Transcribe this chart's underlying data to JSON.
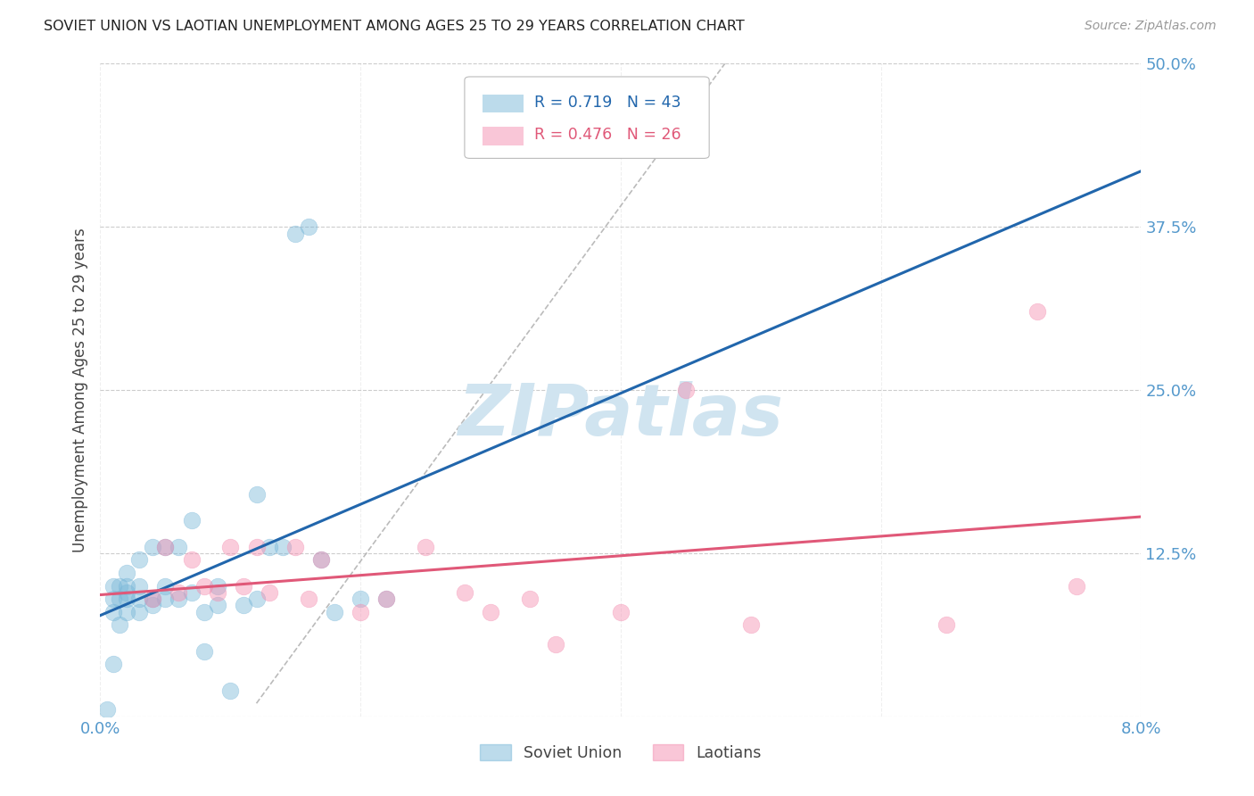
{
  "title": "SOVIET UNION VS LAOTIAN UNEMPLOYMENT AMONG AGES 25 TO 29 YEARS CORRELATION CHART",
  "source": "Source: ZipAtlas.com",
  "ylabel": "Unemployment Among Ages 25 to 29 years",
  "xlim": [
    0.0,
    0.08
  ],
  "ylim": [
    0.0,
    0.5
  ],
  "xticks": [
    0.0,
    0.02,
    0.04,
    0.06,
    0.08
  ],
  "yticks": [
    0.0,
    0.125,
    0.25,
    0.375,
    0.5
  ],
  "soviet_color": "#7ab8d9",
  "laotian_color": "#f48fb1",
  "trendline1_color": "#2166ac",
  "trendline2_color": "#e05878",
  "trendline_dashed_color": "#aaaaaa",
  "background_color": "#ffffff",
  "grid_color": "#cccccc",
  "title_color": "#222222",
  "axis_label_color": "#444444",
  "tick_label_color": "#5599cc",
  "watermark_text": "ZIPatlas",
  "watermark_color": "#d0e4f0",
  "soviet_x": [
    0.0005,
    0.001,
    0.001,
    0.001,
    0.001,
    0.0015,
    0.0015,
    0.0015,
    0.002,
    0.002,
    0.002,
    0.002,
    0.002,
    0.003,
    0.003,
    0.003,
    0.003,
    0.004,
    0.004,
    0.004,
    0.005,
    0.005,
    0.005,
    0.006,
    0.006,
    0.007,
    0.007,
    0.008,
    0.008,
    0.009,
    0.009,
    0.01,
    0.011,
    0.012,
    0.012,
    0.013,
    0.014,
    0.015,
    0.016,
    0.017,
    0.018,
    0.02,
    0.022
  ],
  "soviet_y": [
    0.005,
    0.04,
    0.08,
    0.09,
    0.1,
    0.07,
    0.09,
    0.1,
    0.08,
    0.09,
    0.095,
    0.1,
    0.11,
    0.08,
    0.09,
    0.1,
    0.12,
    0.085,
    0.09,
    0.13,
    0.09,
    0.1,
    0.13,
    0.09,
    0.13,
    0.095,
    0.15,
    0.05,
    0.08,
    0.085,
    0.1,
    0.02,
    0.085,
    0.09,
    0.17,
    0.13,
    0.13,
    0.37,
    0.375,
    0.12,
    0.08,
    0.09,
    0.09
  ],
  "laotian_x": [
    0.004,
    0.005,
    0.006,
    0.007,
    0.008,
    0.009,
    0.01,
    0.011,
    0.012,
    0.013,
    0.015,
    0.016,
    0.017,
    0.02,
    0.022,
    0.025,
    0.028,
    0.03,
    0.033,
    0.035,
    0.04,
    0.045,
    0.05,
    0.065,
    0.072,
    0.075
  ],
  "laotian_y": [
    0.09,
    0.13,
    0.095,
    0.12,
    0.1,
    0.095,
    0.13,
    0.1,
    0.13,
    0.095,
    0.13,
    0.09,
    0.12,
    0.08,
    0.09,
    0.13,
    0.095,
    0.08,
    0.09,
    0.055,
    0.08,
    0.25,
    0.07,
    0.07,
    0.31,
    0.1
  ],
  "legend_r1": "R = 0.719",
  "legend_n1": "N = 43",
  "legend_r2": "R = 0.476",
  "legend_n2": "N = 26"
}
